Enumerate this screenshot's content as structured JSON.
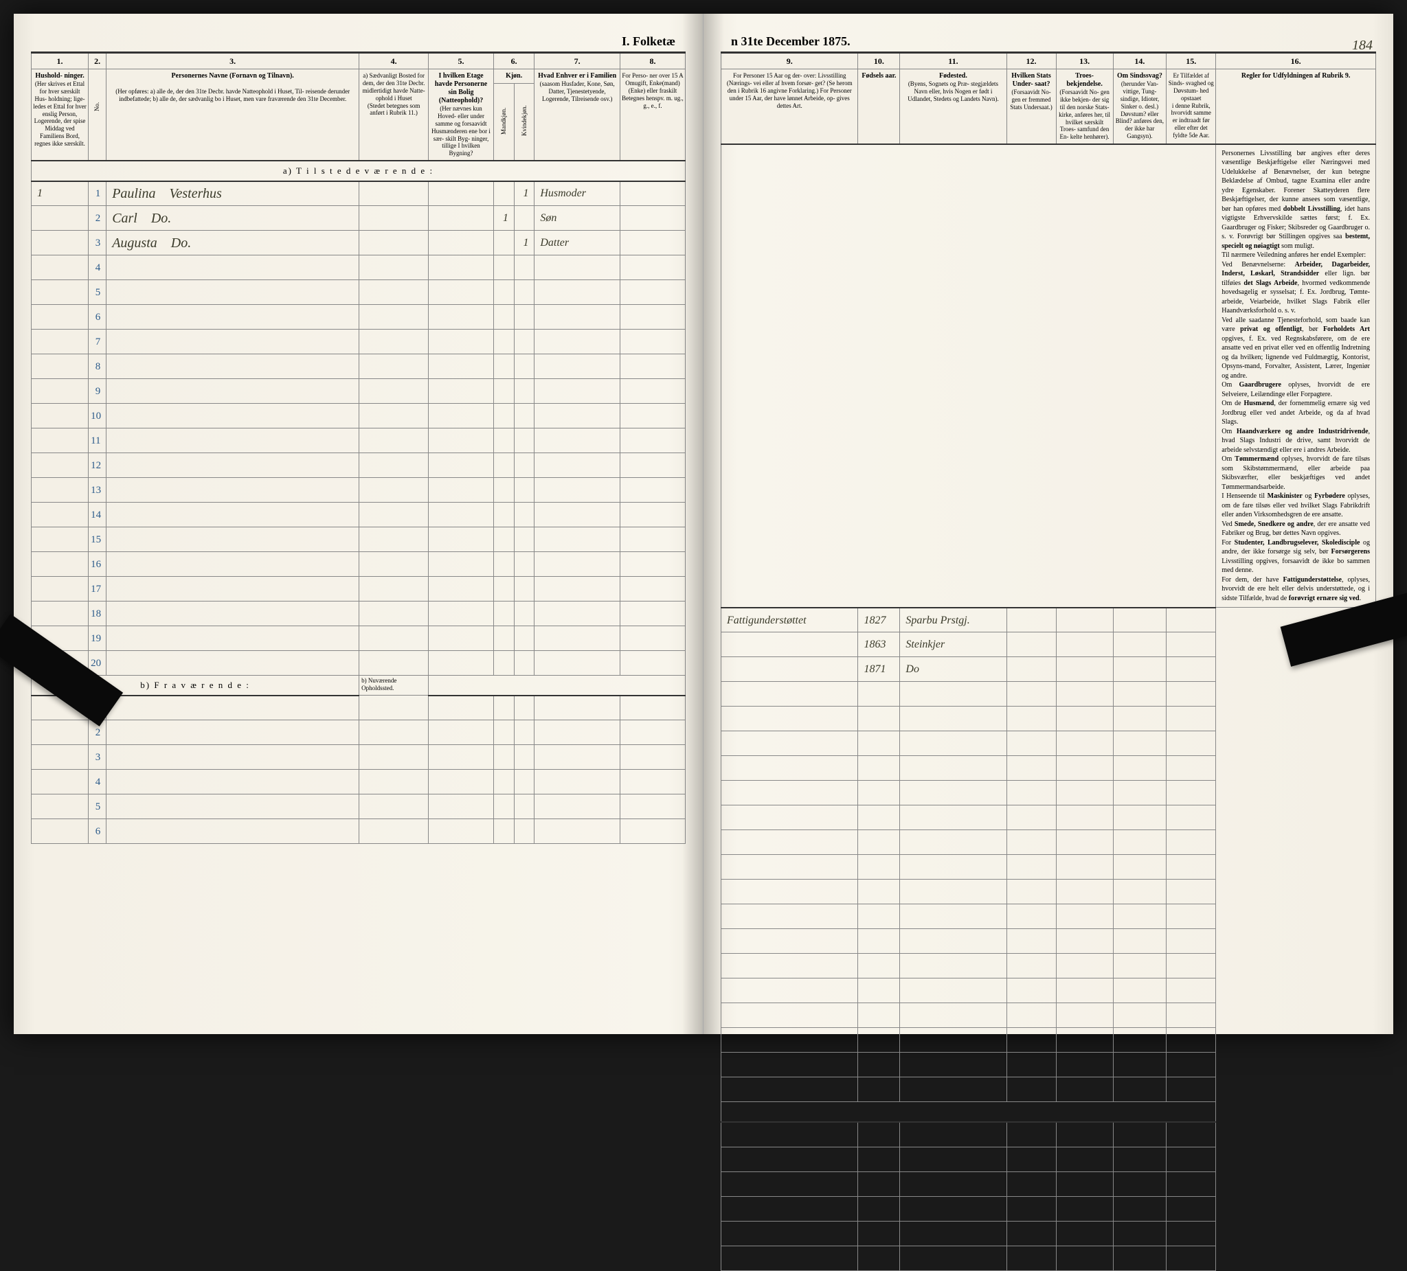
{
  "document": {
    "title_left": "I.  Folketæ",
    "title_right": "n 31te December 1875.",
    "page_number": "184",
    "column_numbers": [
      "1.",
      "2.",
      "3.",
      "4.",
      "5.",
      "6.",
      "7.",
      "8.",
      "9.",
      "10.",
      "11.",
      "12.",
      "13.",
      "14.",
      "15.",
      "16."
    ],
    "headers": {
      "col1": {
        "title": "Hushold-\nninger.",
        "body": "(Her skrives et\nEttal for hver\nsærskilt Hus-\nholdning; lige-\nledes et Ettal\nfor hver enslig\nPerson,\nLogerende,\nder spise Middag\nved Familiens\nBord, regnes ikke\nsærskilt."
      },
      "col2": {
        "title": "",
        "body": "No."
      },
      "col3": {
        "title": "Personernes Navne (Fornavn og Tilnavn).",
        "body": "(Her opføres:\na) alle de, der den 31te Decbr. havde Natteophold i Huset, Til-\nreisende derunder indbefattede;\nb) alle de, der sædvanlig bo i Huset, men vare fraværende\nden 31te December."
      },
      "col4": {
        "title": "a) Sædvanligt\nBosted for\ndem, der den\n31te Decbr.\nmidlertidigt\nhavde Natte-\nophold i Huset",
        "body": "(Stedet betegnes\nsom anført i Rubrik 11.)"
      },
      "col5": {
        "title": "I hvilken\nEtage havde\nPersonerne\nsin Bolig\n(Natteophold)?",
        "body": "(Her nævnes kun Hoved-\neller under samme\nog forsaavidt Husmænderen\nene bor i sær-\nskilt Byg-\nninger, tillige\nI hvilken\nBygning?"
      },
      "col6": {
        "title": "Kjøn.",
        "body": "",
        "sub1": "Mandkjøn.",
        "sub2": "Kvindekjøn."
      },
      "col7": {
        "title": "Hvad Enhver er\ni Familien",
        "body": "(saasom Husfader,\nKone, Søn, Datter,\nTjenestetyende,\nLogerende,\nTilreisende osv.)"
      },
      "col8": {
        "title": "For Perso-\nner over 15 A\nOmugift,\nEnke(mand)\n(Enke) eller\nfraskilt",
        "body": "Betegnes\nhenspv. m.\nug., g., e., f."
      },
      "col9": {
        "title": "",
        "body": "For Personer 15 Aar og der-\nover: Livsstilling (Nærings-\nvei eller af hvem forsør-\nget? (Se herom den i Rubrik 16\nangivne Forklaring.)\n\nFor Personer under 15 Aar,\nder have lønnet Arbeide, op-\ngives dettes Art."
      },
      "col10": {
        "title": "Fødsels\naar."
      },
      "col11": {
        "title": "Fødested.",
        "body": "(Byens, Sognets og Præ-\nstegjældets Navn eller, hvis\nNogen er født i Udlandet,\nStedets og Landets\nNavn)."
      },
      "col12": {
        "title": "Hvilken\nStats Under-\nsaat?",
        "body": "(Forsaavidt No-\ngen er fremmed\nStats Undersaat.)"
      },
      "col13": {
        "title": "Troes-\nbekjendelse.",
        "body": "(Forsaavidt No-\ngen ikke bekjen-\nder sig til den\nnorske Stats-\nkirke, anføres\nher, til hvilket\nsærskilt Troes-\nsamfund den En-\nkelte henhører)."
      },
      "col14": {
        "title": "Om\nSindssvag?",
        "body": "(herunder Van-\nvittige, Tung-\nsindige,\nIdioter,\nSinker o. desl.)\nDøvstum?\neller Blind?\nanføres den, der\nikke har\nGangsyn)."
      },
      "col15": {
        "title": "Er Tilfældet\naf Sinds-\nsvaghed og\nDøvstum-\nhed opstaaet",
        "body": "i denne\nRubrik,\nhvorvidt\nsamme er\nindtraadt\nfør eller\nefter det\nfyldte\n5de Aar."
      },
      "col16": {
        "title": "Regler for Udfyldningen\naf\nRubrik 9."
      }
    },
    "section_a": "a)  T i l s t e d e v æ r e n d e :",
    "section_b": "b)  F r a v æ r e n d e :",
    "section_b_col4": "b) Nuværende\nOpholdssted.",
    "rows_a": [
      {
        "num": "1",
        "household": "1",
        "name_first": "Paulina",
        "name_last": "Vesterhus",
        "col5": "",
        "col6m": "",
        "col6k": "1",
        "col7": "Husmoder",
        "col8": "",
        "col9": "Fattigunderstøttet",
        "col10": "1827",
        "col11": "Sparbu Prstgj."
      },
      {
        "num": "2",
        "household": "",
        "name_first": "Carl",
        "name_last": "Do.",
        "col5": "",
        "col6m": "1",
        "col6k": "",
        "col7": "Søn",
        "col8": "",
        "col9": "",
        "col10": "1863",
        "col11": "Steinkjer"
      },
      {
        "num": "3",
        "household": "",
        "name_first": "Augusta",
        "name_last": "Do.",
        "col5": "",
        "col6m": "",
        "col6k": "1",
        "col7": "Datter",
        "col8": "",
        "col9": "",
        "col10": "1871",
        "col11": "Do"
      }
    ],
    "empty_rows_a": [
      "4",
      "5",
      "6",
      "7",
      "8",
      "9",
      "10",
      "11",
      "12",
      "13",
      "14",
      "15",
      "16",
      "17",
      "18",
      "19",
      "20"
    ],
    "empty_rows_b": [
      "1",
      "2",
      "3",
      "4",
      "5",
      "6"
    ],
    "rules_text": "    Personernes Livsstilling bør angives efter deres væsentlige Beskjæftigelse eller Næringsvei med Udelukkelse af Benævnelser, der kun betegne Beklædelse af Ombud, tagne Examina eller andre ydre Egenskaber. Forener Skatteyderen flere Beskjæftigelser, der kunne ansees som væsentlige, bør han opføres med dobbelt Livsstilling, idet hans vigtigste Erhvervskilde sættes først; f. Ex. Gaardbruger og Fisker; Skibsreder og Gaardbruger o. s. v. Forøvrigt bør Stillingen opgives saa bestemt, specielt og nøiagtigt som muligt.\n    Til nærmere Veiledning anføres her endel Exempler:\n    Ved Benævnelserne: Arbeider, Dagarbeider, Inderst, Løskarl, Strandsidder eller lign. bør tilføies det Slags Arbeide, hvormed vedkommende hovedsagelig er sysselsat; f. Ex. Jordbrug, Tømte-arbeide, Veiarbeide, hvilket Slags Fabrik eller Haandværksforhold o. s. v.\n    Ved alle saadanne Tjenesteforhold, som baade kan være privat og offentligt, bør Forholdets Art opgives, f. Ex. ved Regnskabsførere, om de ere ansatte ved en privat eller ved en offentlig Indretning og da hvilken; lignende ved Fuldmægtig, Kontorist, Opsyns-mand, Forvalter, Assistent, Lærer, Ingeniør og andre.\n    Om Gaardbrugere oplyses, hvorvidt de ere Selveiere, Leilændinge eller Forpagtere.\n    Om de Husmænd, der fornemmelig ernære sig ved Jordbrug eller ved andet Arbeide, og da af hvad Slags.\n    Om Haandværkere og andre Industridrivende, hvad Slags Industri de drive, samt hvorvidt de arbeide selvstændigt eller ere i andres Arbeide.\n    Om Tømmermænd oplyses, hvorvidt de fare tilsøs som Skibstømmermænd, eller arbeide paa Skibsværfter, eller beskjæftiges ved andet Tømmermandsarbeide.\n    I Henseende til Maskinister og Fyrbødere oplyses, om de fare tilsøs eller ved hvilket Slags Fabrikdrift eller anden Virksomhedsgren de ere ansatte.\n    Ved Smede, Snedkere og andre, der ere ansatte ved Fabriker og Brug, bør dettes Navn opgives.\n    For Studenter, Landbrugselever, Skoledisciple og andre, der ikke forsørge sig selv, bør Forsørgerens Livsstilling opgives, forsaavidt de ikke bo sammen med denne.\n    For dem, der have Fattigunderstøttelse, oplyses, hvorvidt de ere helt eller delvis understøttede, og i sidste Tilfælde, hvad de forøvrigt ernære sig ved."
  },
  "colors": {
    "paper": "#f4f0e6",
    "ink": "#333333",
    "rule": "#888888",
    "handwriting": "#3a3a2a",
    "rownum": "#2a5a8a"
  },
  "column_widths_left": {
    "c1": "70px",
    "c2": "22px",
    "c3": "310px",
    "c4": "85px",
    "c5": "80px",
    "c6a": "25px",
    "c6b": "25px",
    "c7": "105px",
    "c8": "80px"
  },
  "column_widths_right": {
    "c9": "180px",
    "c10": "55px",
    "c11": "140px",
    "c12": "65px",
    "c13": "75px",
    "c14": "70px",
    "c15": "65px",
    "c16": "210px"
  }
}
